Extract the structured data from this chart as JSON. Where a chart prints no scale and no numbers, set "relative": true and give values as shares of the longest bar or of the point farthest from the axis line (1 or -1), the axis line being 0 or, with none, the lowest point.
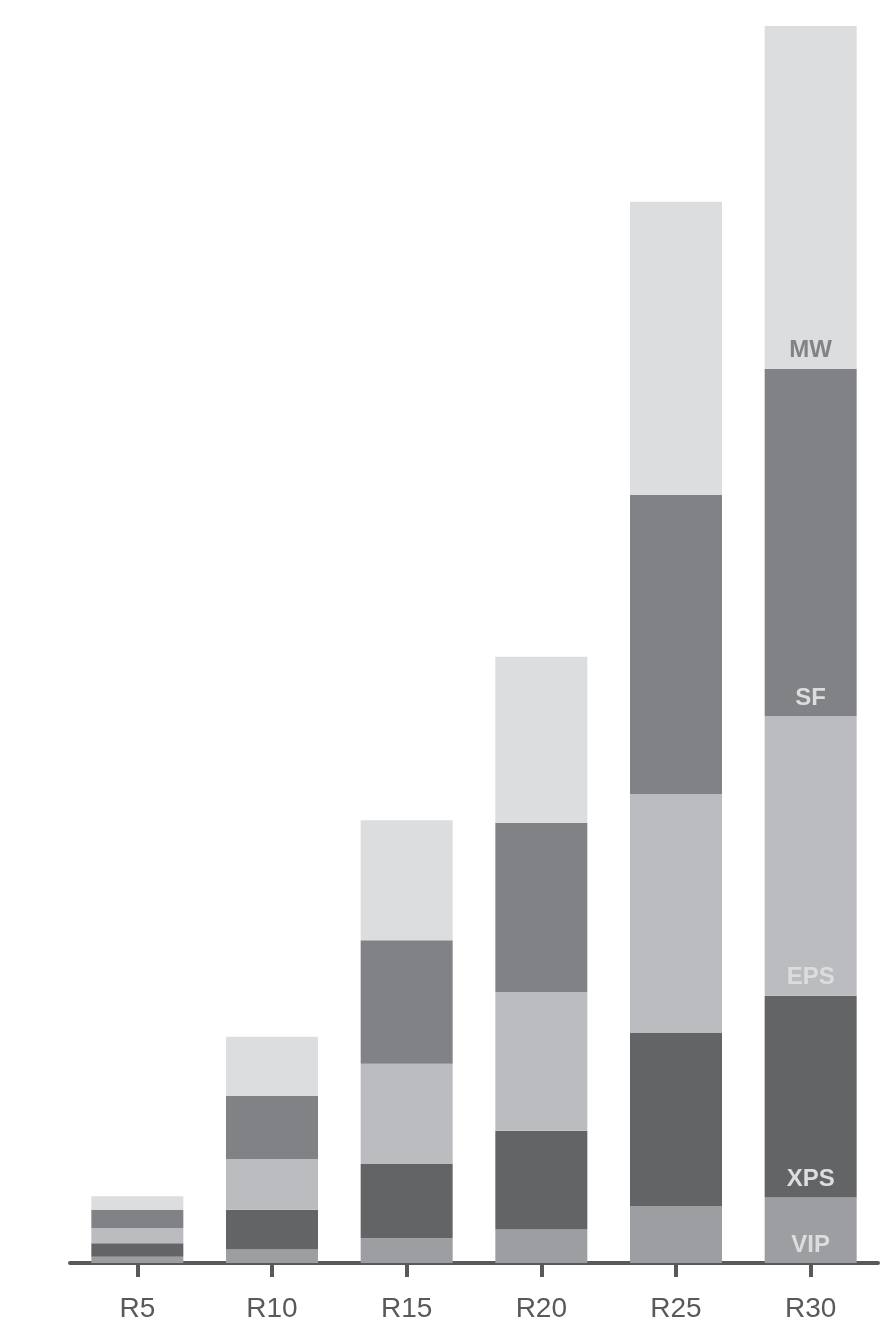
{
  "chart_data": {
    "type": "bar",
    "stacked": true,
    "relative": true,
    "legend": false,
    "grid": false,
    "categories": [
      "R5",
      "R10",
      "R15",
      "R20",
      "R25",
      "R30"
    ],
    "series": [
      {
        "name": "VIP",
        "color": "#9d9ea2",
        "values": [
          0.005,
          0.011,
          0.02,
          0.027,
          0.046,
          0.053
        ]
      },
      {
        "name": "XPS",
        "color": "#636466",
        "values": [
          0.011,
          0.032,
          0.06,
          0.08,
          0.14,
          0.163
        ]
      },
      {
        "name": "EPS",
        "color": "#bbbcbf",
        "values": [
          0.012,
          0.041,
          0.081,
          0.112,
          0.193,
          0.226
        ]
      },
      {
        "name": "SF",
        "color": "#818285",
        "values": [
          0.015,
          0.051,
          0.1,
          0.137,
          0.242,
          0.281
        ]
      },
      {
        "name": "MW",
        "color": "#dcdddf",
        "values": [
          0.011,
          0.048,
          0.097,
          0.134,
          0.237,
          0.277
        ]
      }
    ]
  }
}
